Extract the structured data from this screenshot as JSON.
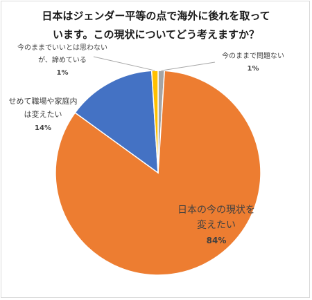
{
  "chart_data": {
    "type": "pie",
    "title": "日本はジェンダー平等の点で海外に後れを取って\nいます。この現状についてどう考えますか？",
    "slices": [
      {
        "label": "日本の今の現状を変えたい",
        "label_lines": [
          "日本の今の現状を",
          "変えたい"
        ],
        "value": 84,
        "display": "84%",
        "color": "#ED7D31"
      },
      {
        "label": "せめて職場や家庭内は変えたい",
        "label_lines": [
          "せめて職場や家庭内",
          "は変えたい"
        ],
        "value": 14,
        "display": "14%",
        "color": "#4472C4"
      },
      {
        "label": "今のままでいいとは思わないが、諦めている",
        "label_lines": [
          "今のままでいいとは思わない",
          "が、諦めている"
        ],
        "value": 1,
        "display": "1%",
        "color": "#FFC000"
      },
      {
        "label": "今のままで問題ない",
        "label_lines": [
          "今のままで問題ない"
        ],
        "value": 1,
        "display": "1%",
        "color": "#A5A5A5"
      }
    ]
  }
}
